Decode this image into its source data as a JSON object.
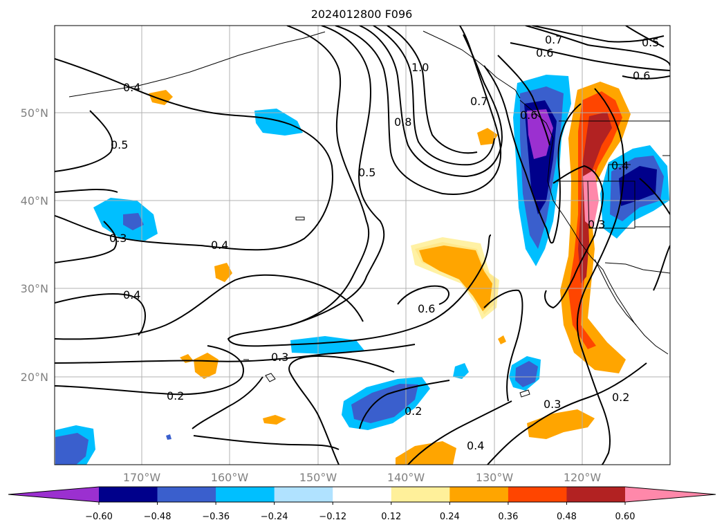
{
  "title": "2024012800 F096",
  "lat_labels": [
    "50°N",
    "40°N",
    "30°N",
    "20°N"
  ],
  "lon_labels": [
    "170°W",
    "160°W",
    "150°W",
    "140°W",
    "130°W",
    "120°W"
  ],
  "colorbar": {
    "colors": [
      "#9b30d0",
      "#00008b",
      "#3a5fcd",
      "#00bfff",
      "#b0e2ff",
      "#ffffff",
      "#fff09a",
      "#ffa500",
      "#ff4500",
      "#b22222",
      "#ff88aa"
    ],
    "tick_labels": [
      "−0.60",
      "−0.48",
      "−0.36",
      "−0.24",
      "−0.12",
      "0.12",
      "0.24",
      "0.36",
      "0.48",
      "0.60"
    ]
  },
  "contour_labels": [
    "0.4",
    "0.5",
    "0.3",
    "0.4",
    "0.4",
    "0.2",
    "0.3",
    "0.5",
    "0.8",
    "1.0",
    "0.7",
    "0.6",
    "0.7",
    "0.6",
    "0.5",
    "0.6",
    "0.4",
    "0.3",
    "0.6",
    "0.2",
    "0.4",
    "0.3",
    "0.2"
  ]
}
